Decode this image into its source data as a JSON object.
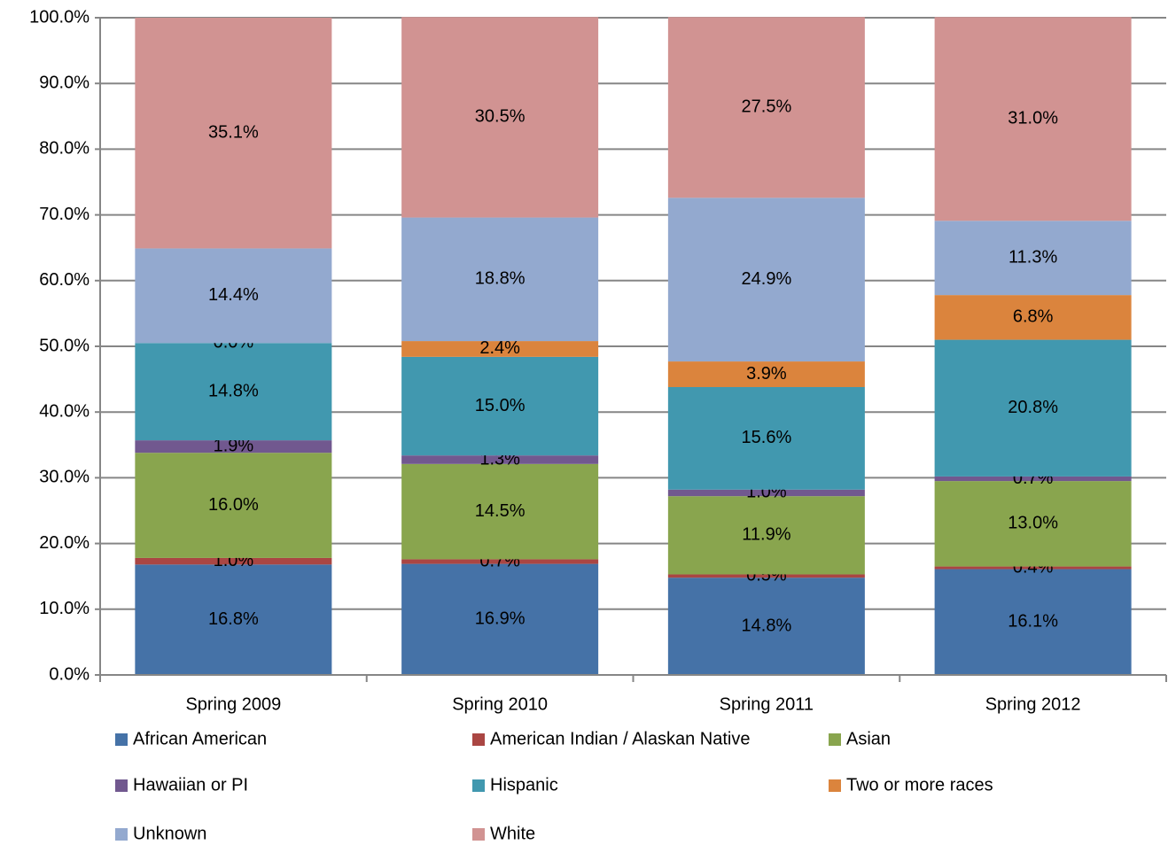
{
  "chart_data": {
    "type": "stacked_bar",
    "categories": [
      "Spring 2009",
      "Spring 2010",
      "Spring 2011",
      "Spring 2012"
    ],
    "series": [
      {
        "name": "African American",
        "color": "#4572a7",
        "values": [
          16.8,
          16.9,
          14.8,
          16.1
        ],
        "value_labels": [
          "16.8%",
          "16.9%",
          "14.8%",
          "16.1%"
        ]
      },
      {
        "name": "American Indian / Alaskan Native",
        "color": "#aa4643",
        "values": [
          1.0,
          0.7,
          0.5,
          0.4
        ],
        "value_labels": [
          "1.0%",
          "0.7%",
          "0.5%",
          "0.4%"
        ]
      },
      {
        "name": "Asian",
        "color": "#89a54e",
        "values": [
          16.0,
          14.5,
          11.9,
          13.0
        ],
        "value_labels": [
          "16.0%",
          "14.5%",
          "11.9%",
          "13.0%"
        ]
      },
      {
        "name": "Hawaiian or PI",
        "color": "#71588f",
        "values": [
          1.9,
          1.3,
          1.0,
          0.7
        ],
        "value_labels": [
          "1.9%",
          "1.3%",
          "1.0%",
          "0.7%"
        ]
      },
      {
        "name": "Hispanic",
        "color": "#4198af",
        "values": [
          14.8,
          15.0,
          15.6,
          20.8
        ],
        "value_labels": [
          "14.8%",
          "15.0%",
          "15.6%",
          "20.8%"
        ]
      },
      {
        "name": "Two or more races",
        "color": "#db843d",
        "values": [
          0.0,
          2.4,
          3.9,
          6.8
        ],
        "value_labels": [
          "0.0%",
          "2.4%",
          "3.9%",
          "6.8%"
        ]
      },
      {
        "name": "Unknown",
        "color": "#93a9cf",
        "values": [
          14.4,
          18.8,
          24.9,
          11.3
        ],
        "value_labels": [
          "14.4%",
          "18.8%",
          "24.9%",
          "11.3%"
        ]
      },
      {
        "name": "White",
        "color": "#d19392",
        "values": [
          35.1,
          30.5,
          27.5,
          31.0
        ],
        "value_labels": [
          "35.1%",
          "30.5%",
          "27.5%",
          "31.0%"
        ]
      }
    ],
    "ylim": [
      0,
      100
    ],
    "yticks": [
      {
        "value": 0,
        "label": "0.0%"
      },
      {
        "value": 10,
        "label": "10.0%"
      },
      {
        "value": 20,
        "label": "20.0%"
      },
      {
        "value": 30,
        "label": "30.0%"
      },
      {
        "value": 40,
        "label": "40.0%"
      },
      {
        "value": 50,
        "label": "50.0%"
      },
      {
        "value": 60,
        "label": "60.0%"
      },
      {
        "value": 70,
        "label": "70.0%"
      },
      {
        "value": 80,
        "label": "80.0%"
      },
      {
        "value": 90,
        "label": "90.0%"
      },
      {
        "value": 100,
        "label": "100.0%"
      }
    ],
    "grid": true,
    "legend": "bottom"
  }
}
